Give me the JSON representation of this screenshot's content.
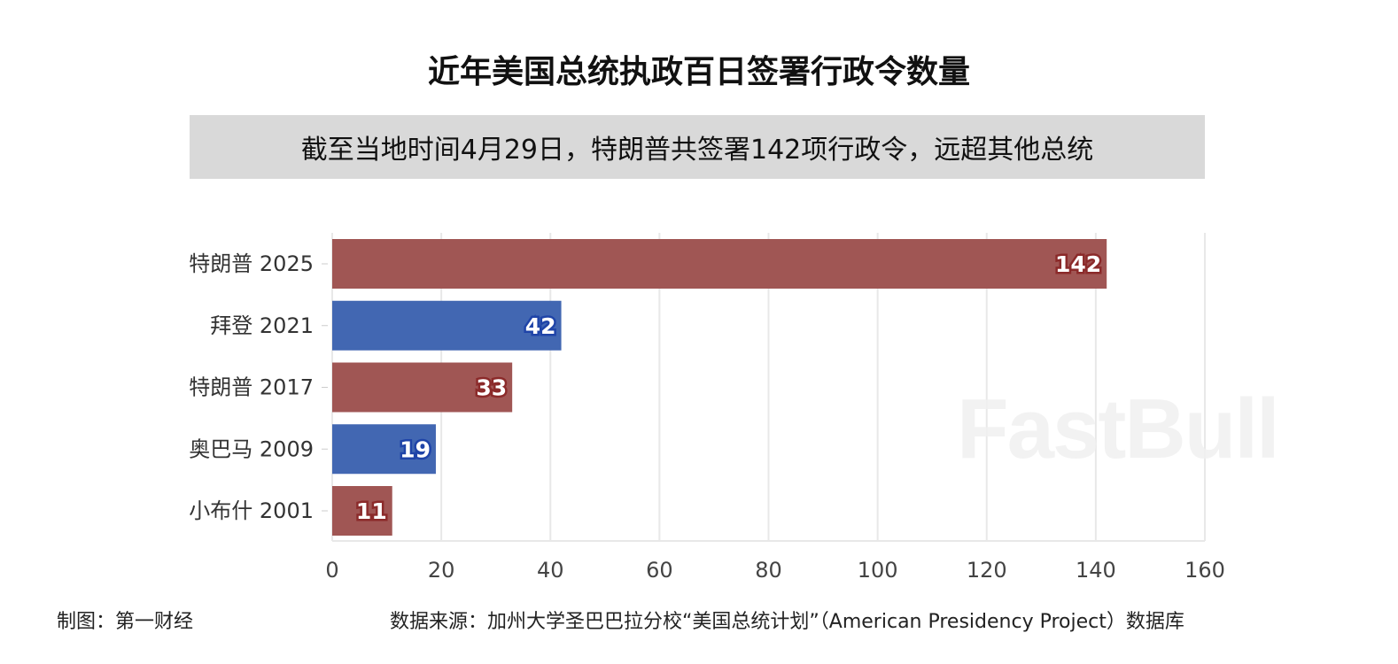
{
  "chart_data": {
    "type": "bar",
    "orientation": "horizontal",
    "title": "近年美国总统执政百日签署行政令数量",
    "subtitle": "截至当地时间4月29日，特朗普共签署142项行政令，远超其他总统",
    "categories": [
      "特朗普 2025",
      "拜登 2021",
      "特朗普 2017",
      "奥巴马 2009",
      "小布什 2001"
    ],
    "values": [
      142,
      42,
      33,
      19,
      11
    ],
    "bar_colors": [
      "#a05654",
      "#4267b2",
      "#a05654",
      "#4267b2",
      "#a05654"
    ],
    "label_outline_colors": [
      "#8b2a2a",
      "#1f44a8",
      "#8b2a2a",
      "#1f44a8",
      "#8b2a2a"
    ],
    "xlim": [
      0,
      160
    ],
    "xticks": [
      0,
      20,
      40,
      60,
      80,
      100,
      120,
      140,
      160
    ],
    "grid": true,
    "xlabel": "",
    "ylabel": ""
  },
  "footer": {
    "credit": "制图：第一财经",
    "source": "数据来源：加州大学圣巴巴拉分校“美国总统计划”（American Presidency Project）数据库"
  },
  "watermark": "FastBull"
}
